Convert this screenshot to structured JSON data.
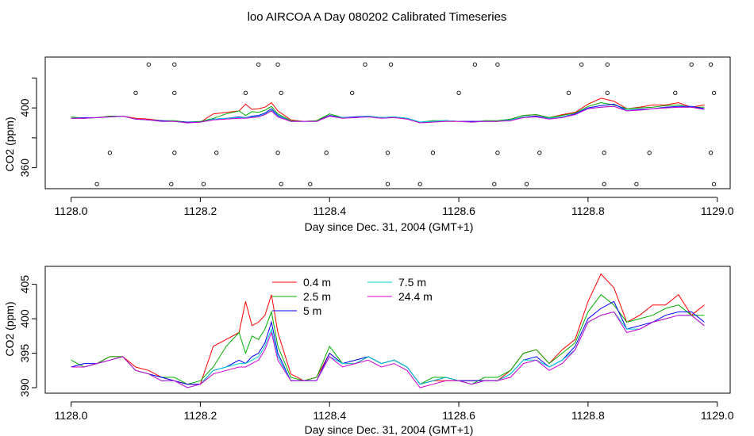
{
  "title": "loo AIRCOA A  Day 080202  Calibrated Timeseries",
  "colors": {
    "red": "#ff0000",
    "green": "#00b000",
    "blue": "#0000ff",
    "cyan": "#00d0d0",
    "magenta": "#d000d0"
  },
  "chart_data": [
    {
      "type": "line",
      "xlabel": "Day since Dec. 31, 2004 (GMT+1)",
      "ylabel": "CO2 (ppm)",
      "xlim": [
        1127.96,
        1129.02
      ],
      "ylim": [
        346,
        434
      ],
      "x_ticks": [
        1128.0,
        1128.2,
        1128.4,
        1128.6,
        1128.8,
        1129.0
      ],
      "x_tick_labels": [
        "1128.0",
        "1128.2",
        "1128.4",
        "1128.6",
        "1128.8",
        "1129.0"
      ],
      "y_ticks": [
        360,
        380,
        400,
        420
      ],
      "y_tick_labels": [
        "360",
        "",
        "400",
        ""
      ],
      "x": [
        1128.0,
        1128.02,
        1128.04,
        1128.06,
        1128.08,
        1128.1,
        1128.12,
        1128.14,
        1128.16,
        1128.18,
        1128.2,
        1128.22,
        1128.24,
        1128.26,
        1128.27,
        1128.28,
        1128.29,
        1128.3,
        1128.31,
        1128.32,
        1128.34,
        1128.36,
        1128.38,
        1128.4,
        1128.42,
        1128.44,
        1128.46,
        1128.48,
        1128.5,
        1128.52,
        1128.54,
        1128.56,
        1128.58,
        1128.6,
        1128.62,
        1128.64,
        1128.66,
        1128.68,
        1128.7,
        1128.72,
        1128.74,
        1128.76,
        1128.78,
        1128.8,
        1128.82,
        1128.84,
        1128.86,
        1128.88,
        1128.9,
        1128.92,
        1128.94,
        1128.96,
        1128.98
      ],
      "series": [
        {
          "color": "#ff0000",
          "values": [
            393,
            393,
            393.5,
            394.5,
            394.5,
            393,
            392.5,
            391.5,
            391,
            390.5,
            390.5,
            396,
            397,
            398,
            402.5,
            399,
            399.5,
            400.5,
            403.5,
            398,
            392,
            391,
            391.5,
            395,
            393.5,
            393.5,
            394.5,
            393.5,
            394,
            393,
            390.5,
            391,
            391,
            391,
            391,
            391,
            391,
            392.5,
            395,
            395.5,
            393.5,
            395.5,
            397,
            402.5,
            406.5,
            404.5,
            399.5,
            400.5,
            402,
            402,
            403.5,
            400.5,
            402
          ]
        },
        {
          "color": "#00b000",
          "values": [
            394,
            393,
            393.5,
            394.5,
            394.5,
            392.5,
            392,
            391.5,
            391.5,
            390.5,
            391,
            393,
            396,
            398,
            395,
            397.5,
            397,
            398.5,
            401,
            396,
            391.5,
            391,
            391.5,
            396,
            393.5,
            394,
            394.5,
            393.5,
            394,
            393,
            390.5,
            391.5,
            391.5,
            391,
            390.5,
            391.5,
            391.5,
            392.5,
            395,
            395.5,
            393.5,
            395,
            396.5,
            401,
            403.5,
            402,
            399.5,
            400,
            400.5,
            401.5,
            402,
            400.5,
            400.5
          ]
        },
        {
          "color": "#0000ff",
          "values": [
            393,
            393.5,
            393.5,
            394,
            394.5,
            392.5,
            392,
            391.5,
            391,
            390.5,
            390.5,
            392.5,
            393,
            394,
            393.5,
            394.5,
            395,
            396.5,
            399.5,
            395,
            391,
            391,
            391,
            395,
            393.5,
            394,
            394.5,
            393.5,
            394,
            393,
            390.5,
            391,
            391.5,
            391,
            391,
            391,
            391,
            392,
            394,
            394.5,
            393,
            394,
            396,
            400,
            401.5,
            402.5,
            398.5,
            399,
            399.5,
            400.5,
            401,
            401,
            399.5
          ]
        },
        {
          "color": "#00d0d0",
          "values": [
            393,
            393,
            393.5,
            394,
            394.5,
            392.5,
            392,
            391,
            391,
            390,
            390.5,
            392.5,
            393,
            393.5,
            393.5,
            394,
            394.5,
            396,
            398.5,
            394.5,
            391,
            391,
            391,
            394.5,
            393.5,
            393.5,
            394.5,
            393.5,
            394,
            393,
            390.5,
            391,
            391.5,
            391,
            390.5,
            391,
            391,
            392,
            394,
            394,
            393,
            394,
            395.5,
            399.5,
            400.5,
            401,
            398.5,
            398.5,
            399.5,
            400,
            400.5,
            400.5,
            399
          ]
        },
        {
          "color": "#d000d0",
          "values": [
            393,
            393,
            393.5,
            394,
            394.5,
            392.5,
            392,
            391,
            391,
            390,
            390.5,
            392,
            392.5,
            393,
            393,
            393.5,
            394,
            395.5,
            398,
            394,
            391,
            391,
            391,
            394.5,
            393,
            393.5,
            394,
            393,
            393.5,
            392.5,
            390,
            390.5,
            391,
            391,
            390.5,
            391,
            391,
            391.5,
            393.5,
            394,
            392.5,
            393.5,
            395.5,
            399.5,
            400.5,
            401,
            398,
            398.5,
            399.5,
            400,
            400.5,
            400.5,
            399
          ]
        }
      ],
      "markers_x": [
        1128.04,
        1128.06,
        1128.1,
        1128.12,
        1128.155,
        1128.16,
        1128.16,
        1128.16,
        1128.205,
        1128.225,
        1128.27,
        1128.29,
        1128.32,
        1128.32,
        1128.325,
        1128.325,
        1128.37,
        1128.395,
        1128.435,
        1128.455,
        1128.49,
        1128.49,
        1128.495,
        1128.54,
        1128.56,
        1128.6,
        1128.625,
        1128.655,
        1128.66,
        1128.66,
        1128.705,
        1128.725,
        1128.77,
        1128.79,
        1128.825,
        1128.825,
        1128.83,
        1128.83,
        1128.875,
        1128.895,
        1128.935,
        1128.96,
        1128.99,
        1128.99,
        1128.995,
        1128.995
      ],
      "markers_y": [
        349,
        370,
        410,
        429,
        349,
        370,
        410,
        429,
        349,
        370,
        410,
        429,
        429,
        370,
        410,
        349,
        349,
        370,
        410,
        429,
        370,
        349,
        429,
        349,
        370,
        410,
        429,
        349,
        370,
        429,
        349,
        370,
        410,
        429,
        349,
        370,
        410,
        429,
        349,
        370,
        410,
        429,
        429,
        370,
        410,
        349
      ]
    },
    {
      "type": "line",
      "xlabel": "Day since Dec. 31, 2004 (GMT+1)",
      "ylabel": "CO2 (ppm)",
      "xlim": [
        1127.96,
        1129.02
      ],
      "ylim": [
        389.2,
        407.6
      ],
      "x_ticks": [
        1128.0,
        1128.2,
        1128.4,
        1128.6,
        1128.8,
        1129.0
      ],
      "x_tick_labels": [
        "1128.0",
        "1128.2",
        "1128.4",
        "1128.6",
        "1128.8",
        "1129.0"
      ],
      "y_ticks": [
        390,
        395,
        400,
        405
      ],
      "y_tick_labels": [
        "390",
        "395",
        "400",
        "405"
      ],
      "legend": {
        "placement": "top-center",
        "columns": 2,
        "entries": [
          {
            "label": "0.4 m",
            "color": "#ff0000"
          },
          {
            "label": "2.5 m",
            "color": "#00b000"
          },
          {
            "label": "5 m",
            "color": "#0000ff"
          },
          {
            "label": "7.5 m",
            "color": "#00d0d0"
          },
          {
            "label": "24.4 m",
            "color": "#d000d0"
          }
        ]
      }
    }
  ]
}
